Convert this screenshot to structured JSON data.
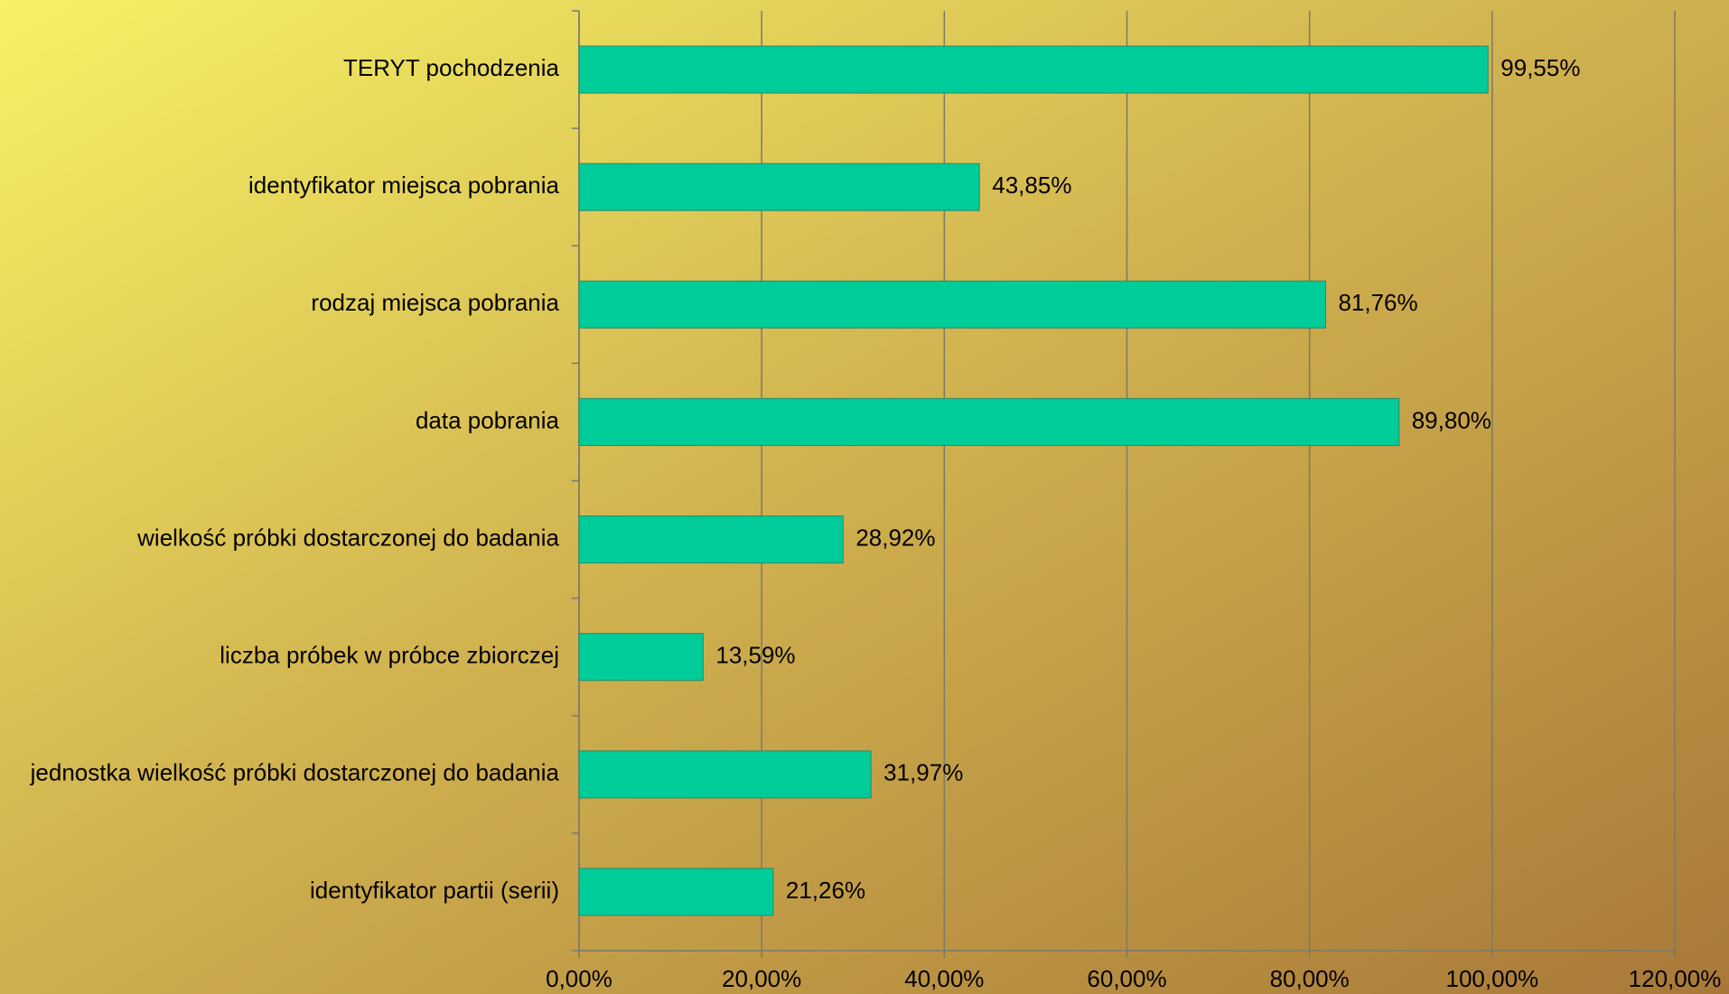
{
  "chart_data": {
    "type": "bar",
    "orientation": "horizontal",
    "categories": [
      "TERYT pochodzenia",
      "identyfikator miejsca pobrania",
      "rodzaj miejsca pobrania",
      "data pobrania",
      "wielkość próbki dostarczonej do badania",
      "liczba próbek w próbce zbiorczej",
      "jednostka wielkość próbki dostarczonej do badania",
      "identyfikator partii (serii)"
    ],
    "values": [
      99.55,
      43.85,
      81.76,
      89.8,
      28.92,
      13.59,
      31.97,
      21.26
    ],
    "value_labels": [
      "99,55%",
      "43,85%",
      "81,76%",
      "89,80%",
      "28,92%",
      "13,59%",
      "31,97%",
      "21,26%"
    ],
    "color": "#00cc99",
    "xlim": [
      0,
      120
    ],
    "xticks": [
      {
        "value": 0,
        "label": "0,00%"
      },
      {
        "value": 20,
        "label": "20,00%"
      },
      {
        "value": 40,
        "label": "40,00%"
      },
      {
        "value": 60,
        "label": "60,00%"
      },
      {
        "value": 80,
        "label": "80,00%"
      },
      {
        "value": 100,
        "label": "100,00%"
      },
      {
        "value": 120,
        "label": "120,00%"
      }
    ],
    "grid": true
  }
}
